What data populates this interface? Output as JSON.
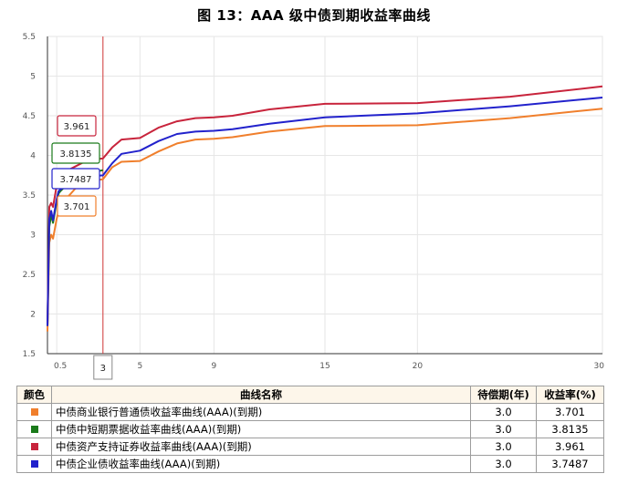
{
  "chart_data": {
    "type": "line",
    "title": "图  13：AAA 级中债到期收益率曲线",
    "ylim": [
      1.5,
      5.5
    ],
    "y_ticks": [
      "1.5",
      "2",
      "2.5",
      "3",
      "3.5",
      "4",
      "4.5",
      "5",
      "5.5"
    ],
    "x_ticks": [
      "0.5",
      "3",
      "5",
      "9",
      "15",
      "20",
      "30"
    ],
    "xlim": [
      0,
      30
    ],
    "selected_term": "3",
    "grid": true,
    "series": [
      {
        "name": "中债商业银行普通债收益率曲线(AAA)(到期)",
        "color": "#f07f2c",
        "x": [
          0,
          0.1,
          0.2,
          0.3,
          0.5,
          0.6,
          0.7,
          1,
          1.5,
          2,
          2.5,
          3,
          3.5,
          4,
          5,
          6,
          7,
          8,
          9,
          10,
          12,
          15,
          20,
          25,
          30
        ],
        "y": [
          1.78,
          2.9,
          3.0,
          2.95,
          3.2,
          3.3,
          3.3,
          3.45,
          3.58,
          3.64,
          3.68,
          3.7,
          3.85,
          3.92,
          3.93,
          4.05,
          4.15,
          4.2,
          4.21,
          4.23,
          4.3,
          4.37,
          4.38,
          4.47,
          4.59
        ]
      },
      {
        "name": "中债中短期票据收益率曲线(AAA)(到期)",
        "color": "#1a7a1a",
        "x": [
          0,
          0.1,
          0.2,
          0.3,
          0.5,
          0.6,
          0.7,
          1,
          1.5,
          2,
          2.5,
          3
        ],
        "y": [
          1.85,
          3.1,
          3.25,
          3.15,
          3.42,
          3.52,
          3.55,
          3.62,
          3.7,
          3.76,
          3.79,
          3.8135
        ]
      },
      {
        "name": "中债资产支持证券收益率曲线(AAA)(到期)",
        "color": "#c8243c",
        "x": [
          0,
          0.1,
          0.2,
          0.3,
          0.5,
          0.6,
          0.7,
          1,
          1.5,
          2,
          2.5,
          3,
          3.5,
          4,
          5,
          6,
          7,
          8,
          9,
          10,
          12,
          15,
          20,
          25,
          30
        ],
        "y": [
          1.85,
          3.35,
          3.4,
          3.35,
          3.62,
          3.72,
          3.74,
          3.8,
          3.86,
          3.92,
          3.95,
          3.961,
          4.1,
          4.2,
          4.22,
          4.35,
          4.43,
          4.47,
          4.48,
          4.5,
          4.58,
          4.65,
          4.66,
          4.74,
          4.87
        ]
      },
      {
        "name": "中债企业债收益率曲线(AAA)(到期)",
        "color": "#2222cc",
        "x": [
          0,
          0.1,
          0.2,
          0.3,
          0.5,
          0.6,
          0.7,
          1,
          1.5,
          2,
          2.5,
          3,
          3.5,
          4,
          5,
          6,
          7,
          8,
          9,
          10,
          12,
          15,
          20,
          25,
          30
        ],
        "y": [
          1.85,
          3.2,
          3.3,
          3.18,
          3.45,
          3.55,
          3.57,
          3.62,
          3.68,
          3.72,
          3.74,
          3.7487,
          3.9,
          4.02,
          4.06,
          4.18,
          4.27,
          4.3,
          4.31,
          4.33,
          4.4,
          4.48,
          4.53,
          4.62,
          4.73
        ]
      }
    ],
    "tooltips": [
      "3.961",
      "3.8135",
      "3.7487",
      "3.701"
    ]
  },
  "table": {
    "headers": [
      "颜色",
      "曲线名称",
      "待偿期(年)",
      "收益率(%)"
    ],
    "rows": [
      {
        "color": "#f07f2c",
        "name": "中债商业银行普通债收益率曲线(AAA)(到期)",
        "term": "3.0",
        "yield": "3.701"
      },
      {
        "color": "#1a7a1a",
        "name": "中债中短期票据收益率曲线(AAA)(到期)",
        "term": "3.0",
        "yield": "3.8135"
      },
      {
        "color": "#c8243c",
        "name": "中债资产支持证券收益率曲线(AAA)(到期)",
        "term": "3.0",
        "yield": "3.961"
      },
      {
        "color": "#2222cc",
        "name": "中债企业债收益率曲线(AAA)(到期)",
        "term": "3.0",
        "yield": "3.7487"
      }
    ]
  }
}
